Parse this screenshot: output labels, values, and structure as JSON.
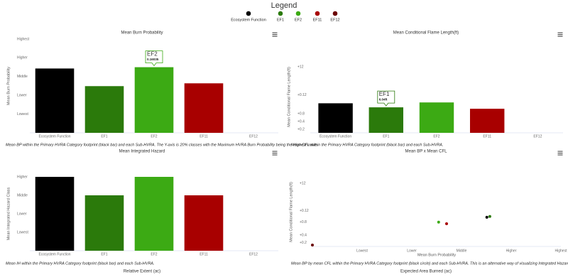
{
  "legend": {
    "title": "Legend",
    "items": [
      {
        "name": "Ecosystem Function",
        "color": "#000000"
      },
      {
        "name": "EF1",
        "color": "#2b7a0b"
      },
      {
        "name": "EF2",
        "color": "#3caa14"
      },
      {
        "name": "EF11",
        "color": "#a80000"
      },
      {
        "name": "EF12",
        "color": "#6b0000"
      }
    ]
  },
  "chart_data": [
    {
      "type": "bar",
      "title": "Mean Burn Probability",
      "y_label": "Mean Burn Probability",
      "categories": [
        "Ecosystem Function",
        "EF1",
        "EF2",
        "EF11",
        "EF12"
      ],
      "values": [
        3.43,
        2.49,
        3.5,
        2.64,
        null
      ],
      "colors": [
        "#000000",
        "#2b7a0b",
        "#3caa14",
        "#a80000",
        "#6b0000"
      ],
      "ylim": [
        0,
        5
      ],
      "yticks": [
        {
          "value": 1,
          "label": "Lowest"
        },
        {
          "value": 2,
          "label": "Lower"
        },
        {
          "value": 3,
          "label": "Middle"
        },
        {
          "value": 4,
          "label": "Higher"
        },
        {
          "value": 5,
          "label": "Highest"
        }
      ],
      "grid": false,
      "tooltip": {
        "title": "EF2",
        "text": "0.16035"
      },
      "caption": "Mean BP within the Primary HVRA Category footprint (black bar) and each Sub-HVRA. The Y-axis is 20% classes with the Maximum HVRA Burn Probability being the Highest value."
    },
    {
      "type": "bar",
      "title": "Mean Conditional Flame Length(ft)",
      "y_label": "Mean Conditional Flame Length(ft)",
      "categories": [
        "Ecosystem Function",
        "EF1",
        "EF2",
        "EF11",
        "EF12"
      ],
      "values": [
        7.0,
        6.04,
        7.2,
        5.7,
        null
      ],
      "colors": [
        "#000000",
        "#2b7a0b",
        "#3caa14",
        "#a80000",
        "#6b0000"
      ],
      "ylim": [
        0,
        17
      ],
      "yticks": [
        {
          "value": 0.8,
          "label": "+0.2"
        },
        {
          "value": 2.7,
          "label": "+0.4"
        },
        {
          "value": 4.5,
          "label": "+0.8"
        },
        {
          "value": 9,
          "label": "+0.12"
        },
        {
          "value": 15.6,
          "label": "+12"
        }
      ],
      "grid": false,
      "tooltip": {
        "title": "EF1",
        "text": "6.04ft"
      },
      "caption": "Mean CFL within the Primary HVRA Category footprint (black bar) and each Sub-HVRA."
    },
    {
      "type": "bar",
      "title": "Mean Integrated Hazard",
      "y_label": "Mean Integrated Hazard Class",
      "categories": [
        "Ecosystem Function",
        "EF1",
        "EF2",
        "EF11",
        "EF12"
      ],
      "values": [
        4,
        3,
        4,
        3,
        null
      ],
      "colors": [
        "#000000",
        "#2b7a0b",
        "#3caa14",
        "#a80000",
        "#6b0000"
      ],
      "ylim": [
        0,
        4
      ],
      "yticks": [
        {
          "value": 1,
          "label": "Lowest"
        },
        {
          "value": 2,
          "label": "Lower"
        },
        {
          "value": 3,
          "label": "Middle"
        },
        {
          "value": 4,
          "label": "Higher"
        }
      ],
      "grid": false,
      "caption": "Mean IH within the Primary HVRA Category footprint (black bar) and each Sub-HVRA."
    },
    {
      "type": "scatter",
      "title": "Mean BP x Mean CFL",
      "x_label": "Mean Burn Probability",
      "y_label": "Mean Conditional Flame Length(ft)",
      "x": [
        3.51,
        3.57,
        2.54,
        2.7,
        0
      ],
      "values": [
        7.2,
        7.4,
        6.0,
        5.6,
        0.35
      ],
      "colors": [
        "#000000",
        "#2b7a0b",
        "#3caa14",
        "#a80000",
        "#6b0000"
      ],
      "xlim": [
        0,
        5
      ],
      "xticks": [
        {
          "value": 1,
          "label": "Lowest"
        },
        {
          "value": 2,
          "label": "Lower"
        },
        {
          "value": 3,
          "label": "Middle"
        },
        {
          "value": 4,
          "label": "Higher"
        },
        {
          "value": 5,
          "label": "Highest"
        }
      ],
      "ylim": [
        0,
        17
      ],
      "yticks": [
        {
          "value": 0.9,
          "label": "+0.2"
        },
        {
          "value": 2.8,
          "label": "+0.4"
        },
        {
          "value": 6.0,
          "label": "+0.8"
        },
        {
          "value": 8.8,
          "label": "+0.12"
        },
        {
          "value": 15.6,
          "label": "+12"
        }
      ],
      "grid": false,
      "caption": "Mean BP by mean CFL within the Primary HVRA Category footprint (black circle) and each Sub-HVRA. This is an alternative way of visualizing Integrated Hazard."
    }
  ],
  "bottom_titles": [
    "Relative Extent (ac)",
    "Expected Area Burned (ac)"
  ]
}
